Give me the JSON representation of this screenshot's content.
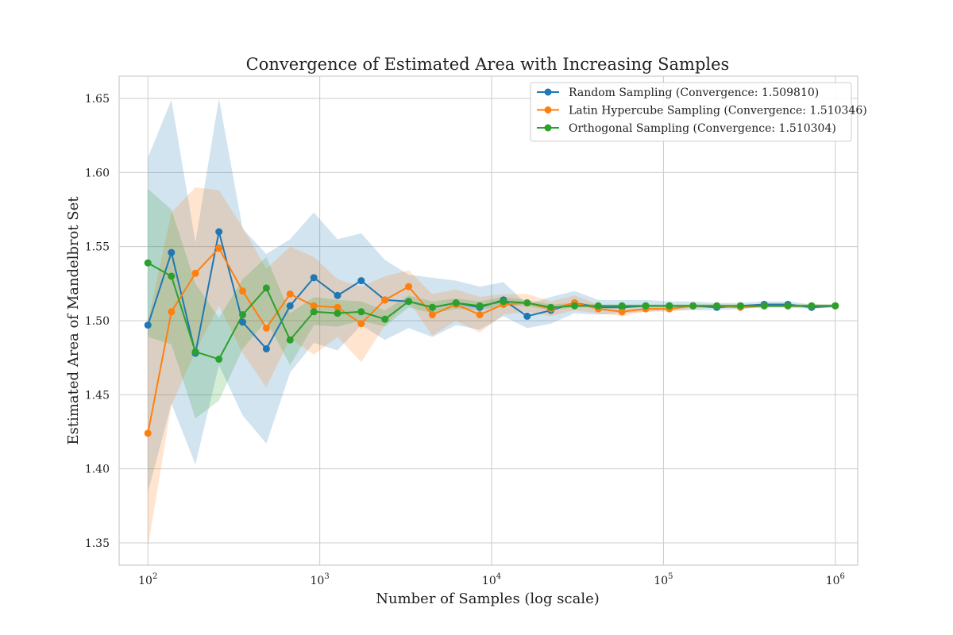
{
  "chart_data": {
    "type": "line",
    "title": "Convergence of Estimated Area with Increasing Samples",
    "xlabel": "Number of Samples (log scale)",
    "ylabel": "Estimated Area of Mandelbrot Set",
    "xscale": "log",
    "xlim": [
      68,
      1350000
    ],
    "ylim": [
      1.335,
      1.665
    ],
    "x_ticks": [
      {
        "value": 100,
        "base": "10",
        "exp": "2"
      },
      {
        "value": 1000,
        "base": "10",
        "exp": "3"
      },
      {
        "value": 10000,
        "base": "10",
        "exp": "4"
      },
      {
        "value": 100000,
        "base": "10",
        "exp": "5"
      },
      {
        "value": 1000000,
        "base": "10",
        "exp": "6"
      }
    ],
    "y_ticks": [
      "1.35",
      "1.40",
      "1.45",
      "1.50",
      "1.55",
      "1.60",
      "1.65"
    ],
    "grid": true,
    "legend_position": "top-right",
    "x": [
      100,
      137,
      189,
      259,
      356,
      489,
      672,
      924,
      1269,
      1743,
      2395,
      3290,
      4520,
      6210,
      8532,
      11721,
      16103,
      22122,
      30392,
      41753,
      57362,
      78805,
      108264,
      148735,
      204336,
      280722,
      385662,
      529831,
      727895,
      1000000
    ],
    "series": [
      {
        "name": "Random Sampling (Convergence: 1.509810)",
        "color": "#1f77b4",
        "values": [
          1.497,
          1.546,
          1.478,
          1.56,
          1.499,
          1.481,
          1.51,
          1.529,
          1.517,
          1.527,
          1.514,
          1.513,
          1.509,
          1.512,
          1.509,
          1.514,
          1.503,
          1.507,
          1.512,
          1.509,
          1.509,
          1.51,
          1.51,
          1.51,
          1.509,
          1.51,
          1.511,
          1.511,
          1.509,
          1.51
        ],
        "lower": [
          1.384,
          1.444,
          1.403,
          1.47,
          1.436,
          1.417,
          1.465,
          1.485,
          1.48,
          1.497,
          1.487,
          1.495,
          1.489,
          1.497,
          1.494,
          1.503,
          1.495,
          1.498,
          1.505,
          1.504,
          1.505,
          1.506,
          1.507,
          1.507,
          1.507,
          1.508,
          1.509,
          1.509,
          1.508,
          1.509
        ],
        "upper": [
          1.61,
          1.649,
          1.553,
          1.65,
          1.562,
          1.545,
          1.555,
          1.573,
          1.555,
          1.559,
          1.541,
          1.531,
          1.529,
          1.527,
          1.523,
          1.526,
          1.511,
          1.516,
          1.52,
          1.514,
          1.514,
          1.514,
          1.513,
          1.513,
          1.512,
          1.512,
          1.513,
          1.513,
          1.511,
          1.511
        ]
      },
      {
        "name": "Latin Hypercube Sampling (Convergence: 1.510346)",
        "color": "#ff7f0e",
        "values": [
          1.424,
          1.506,
          1.532,
          1.549,
          1.52,
          1.495,
          1.518,
          1.51,
          1.509,
          1.498,
          1.514,
          1.523,
          1.504,
          1.511,
          1.504,
          1.511,
          1.512,
          1.508,
          1.512,
          1.508,
          1.506,
          1.508,
          1.508,
          1.51,
          1.51,
          1.509,
          1.51,
          1.51,
          1.51,
          1.51
        ],
        "lower": [
          1.347,
          1.443,
          1.479,
          1.51,
          1.478,
          1.455,
          1.488,
          1.477,
          1.489,
          1.472,
          1.497,
          1.513,
          1.49,
          1.5,
          1.492,
          1.504,
          1.506,
          1.503,
          1.507,
          1.505,
          1.503,
          1.506,
          1.506,
          1.508,
          1.509,
          1.508,
          1.509,
          1.509,
          1.509,
          1.509
        ],
        "upper": [
          1.5,
          1.573,
          1.59,
          1.588,
          1.563,
          1.535,
          1.55,
          1.543,
          1.528,
          1.523,
          1.53,
          1.534,
          1.518,
          1.521,
          1.516,
          1.518,
          1.518,
          1.513,
          1.517,
          1.511,
          1.509,
          1.51,
          1.51,
          1.511,
          1.511,
          1.51,
          1.511,
          1.511,
          1.511,
          1.511
        ]
      },
      {
        "name": "Orthogonal Sampling (Convergence: 1.510304)",
        "color": "#2ca02c",
        "values": [
          1.539,
          1.53,
          1.479,
          1.474,
          1.504,
          1.522,
          1.487,
          1.506,
          1.505,
          1.506,
          1.501,
          1.513,
          1.509,
          1.512,
          1.51,
          1.513,
          1.512,
          1.509,
          1.51,
          1.51,
          1.51,
          1.51,
          1.51,
          1.51,
          1.51,
          1.51,
          1.51,
          1.51,
          1.51,
          1.51
        ],
        "lower": [
          1.489,
          1.484,
          1.434,
          1.446,
          1.481,
          1.5,
          1.47,
          1.497,
          1.496,
          1.5,
          1.496,
          1.509,
          1.505,
          1.508,
          1.507,
          1.51,
          1.51,
          1.507,
          1.509,
          1.509,
          1.509,
          1.509,
          1.509,
          1.509,
          1.509,
          1.509,
          1.509,
          1.509,
          1.509,
          1.509
        ],
        "upper": [
          1.589,
          1.575,
          1.525,
          1.502,
          1.528,
          1.543,
          1.505,
          1.516,
          1.514,
          1.513,
          1.507,
          1.517,
          1.513,
          1.515,
          1.513,
          1.516,
          1.514,
          1.511,
          1.512,
          1.511,
          1.511,
          1.511,
          1.511,
          1.511,
          1.511,
          1.511,
          1.511,
          1.511,
          1.511,
          1.511
        ]
      }
    ]
  }
}
